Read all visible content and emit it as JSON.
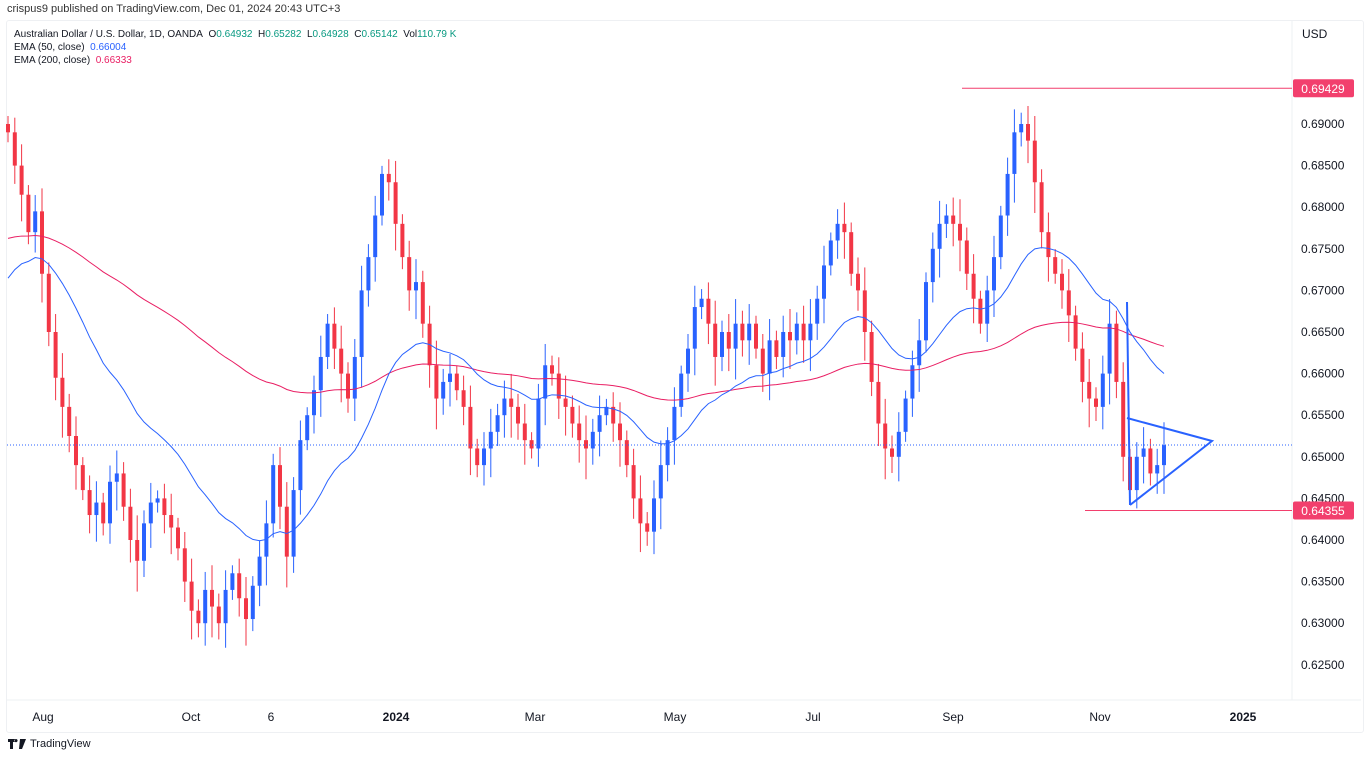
{
  "header": {
    "published": "crispus9 published on TradingView.com, Dec 01, 2024 20:43 UTC+3"
  },
  "legend": {
    "symbol": "Australian Dollar / U.S. Dollar, 1D, OANDA",
    "o_label": "O",
    "o": "0.64932",
    "h_label": "H",
    "h": "0.65282",
    "l_label": "L",
    "l": "0.64928",
    "c_label": "C",
    "c": "0.65142",
    "vol_label": "Vol",
    "vol": "110.79 K",
    "ema50_label": "EMA (50, close)",
    "ema50": "0.66004",
    "ema200_label": "EMA (200, close)",
    "ema200": "0.66333"
  },
  "currency": "USD",
  "footer": {
    "brand": "TradingView"
  },
  "colors": {
    "up": "#2962ff",
    "down": "#f23645",
    "ema50": "#2962ff",
    "ema200": "#e91e63",
    "level": "#f23f6d"
  },
  "chart_data": {
    "type": "candlestick",
    "ylim": [
      0.6215,
      0.6985
    ],
    "yticks": [
      "0.69000",
      "0.68500",
      "0.68000",
      "0.67500",
      "0.67000",
      "0.66500",
      "0.66000",
      "0.65500",
      "0.65000",
      "0.64500",
      "0.64000",
      "0.63500",
      "0.63000",
      "0.62500"
    ],
    "xticks": [
      {
        "label": "Aug",
        "bold": false
      },
      {
        "label": "Oct",
        "bold": false
      },
      {
        "label": "6",
        "bold": false
      },
      {
        "label": "2024",
        "bold": true
      },
      {
        "label": "Mar",
        "bold": false
      },
      {
        "label": "May",
        "bold": false
      },
      {
        "label": "Jul",
        "bold": false
      },
      {
        "label": "Sep",
        "bold": false
      },
      {
        "label": "Nov",
        "bold": false
      },
      {
        "label": "2025",
        "bold": true
      }
    ],
    "closes": [
      0.689,
      0.685,
      0.6815,
      0.677,
      0.6795,
      0.672,
      0.665,
      0.6595,
      0.656,
      0.6525,
      0.649,
      0.646,
      0.643,
      0.6445,
      0.642,
      0.647,
      0.648,
      0.644,
      0.64,
      0.6375,
      0.642,
      0.6445,
      0.645,
      0.643,
      0.6415,
      0.639,
      0.635,
      0.6315,
      0.63,
      0.634,
      0.632,
      0.63,
      0.634,
      0.636,
      0.633,
      0.6305,
      0.6345,
      0.638,
      0.642,
      0.649,
      0.644,
      0.638,
      0.646,
      0.652,
      0.655,
      0.658,
      0.662,
      0.666,
      0.663,
      0.66,
      0.657,
      0.662,
      0.67,
      0.674,
      0.679,
      0.684,
      0.683,
      0.678,
      0.674,
      0.67,
      0.671,
      0.666,
      0.661,
      0.657,
      0.659,
      0.66,
      0.658,
      0.656,
      0.651,
      0.649,
      0.651,
      0.653,
      0.655,
      0.657,
      0.656,
      0.654,
      0.652,
      0.651,
      0.657,
      0.661,
      0.66,
      0.657,
      0.656,
      0.654,
      0.652,
      0.651,
      0.653,
      0.655,
      0.656,
      0.654,
      0.652,
      0.649,
      0.645,
      0.642,
      0.641,
      0.645,
      0.649,
      0.652,
      0.656,
      0.66,
      0.663,
      0.668,
      0.669,
      0.666,
      0.662,
      0.665,
      0.663,
      0.666,
      0.664,
      0.666,
      0.663,
      0.66,
      0.664,
      0.662,
      0.665,
      0.664,
      0.666,
      0.664,
      0.666,
      0.669,
      0.673,
      0.676,
      0.678,
      0.677,
      0.672,
      0.67,
      0.665,
      0.659,
      0.654,
      0.651,
      0.65,
      0.653,
      0.657,
      0.661,
      0.664,
      0.671,
      0.675,
      0.678,
      0.679,
      0.678,
      0.676,
      0.672,
      0.669,
      0.666,
      0.67,
      0.674,
      0.679,
      0.684,
      0.689,
      0.69,
      0.688,
      0.683,
      0.677,
      0.674,
      0.672,
      0.67,
      0.667,
      0.663,
      0.659,
      0.657,
      0.656,
      0.66,
      0.666,
      0.659,
      0.65,
      0.646,
      0.65,
      0.651,
      0.648,
      0.649,
      0.6514
    ],
    "levels": [
      {
        "label": "0.69429",
        "value": 0.69429
      },
      {
        "label": "0.64355",
        "value": 0.64355
      }
    ],
    "last_price": 0.65142
  }
}
